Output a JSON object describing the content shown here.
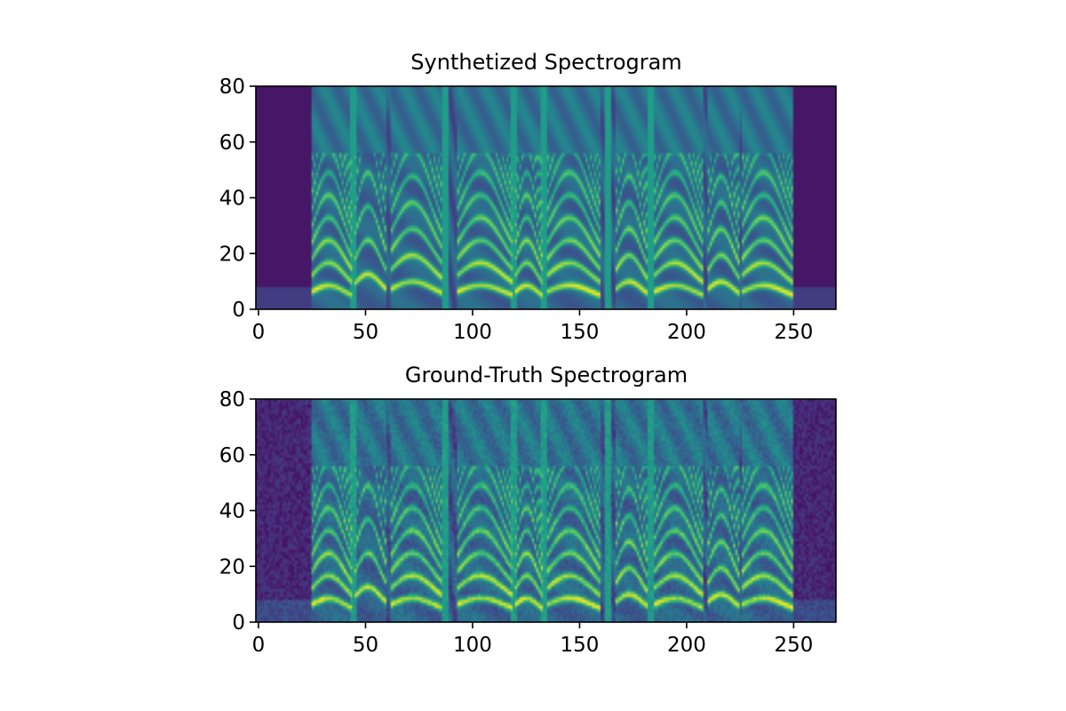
{
  "chart_data": [
    {
      "type": "heatmap",
      "title": "Synthetized Spectrogram",
      "xlim": [
        0,
        271
      ],
      "ylim": [
        0,
        80
      ],
      "xticks": [
        "0",
        "50",
        "100",
        "150",
        "200",
        "250"
      ],
      "yticks": [
        "0",
        "20",
        "40",
        "60",
        "80"
      ],
      "colormap": "viridis",
      "noise": false,
      "silence_ranges": [
        [
          0,
          25
        ],
        [
          250,
          271
        ]
      ],
      "segments": [
        {
          "x": [
            26,
            44
          ],
          "base": 6
        },
        {
          "x": [
            46,
            60
          ],
          "base": 9
        },
        {
          "x": [
            63,
            86
          ],
          "base": 7
        },
        {
          "x": [
            94,
            119
          ],
          "base": 6
        },
        {
          "x": [
            121,
            133
          ],
          "base": 6
        },
        {
          "x": [
            136,
            160
          ],
          "base": 6
        },
        {
          "x": [
            168,
            182
          ],
          "base": 7
        },
        {
          "x": [
            186,
            208
          ],
          "base": 6
        },
        {
          "x": [
            211,
            225
          ],
          "base": 7
        },
        {
          "x": [
            227,
            250
          ],
          "base": 6
        }
      ],
      "dividers": [
        45,
        88,
        120,
        134,
        164,
        184
      ]
    },
    {
      "type": "heatmap",
      "title": "Ground-Truth Spectrogram",
      "xlim": [
        0,
        271
      ],
      "ylim": [
        0,
        80
      ],
      "xticks": [
        "0",
        "50",
        "100",
        "150",
        "200",
        "250"
      ],
      "yticks": [
        "0",
        "20",
        "40",
        "60",
        "80"
      ],
      "colormap": "viridis",
      "noise": true,
      "silence_ranges": [
        [
          0,
          25
        ],
        [
          250,
          271
        ]
      ],
      "segments": [
        {
          "x": [
            26,
            44
          ],
          "base": 6
        },
        {
          "x": [
            46,
            60
          ],
          "base": 9
        },
        {
          "x": [
            63,
            86
          ],
          "base": 6
        },
        {
          "x": [
            94,
            119
          ],
          "base": 6
        },
        {
          "x": [
            121,
            133
          ],
          "base": 6
        },
        {
          "x": [
            136,
            160
          ],
          "base": 6
        },
        {
          "x": [
            168,
            182
          ],
          "base": 7
        },
        {
          "x": [
            186,
            208
          ],
          "base": 6
        },
        {
          "x": [
            211,
            225
          ],
          "base": 7
        },
        {
          "x": [
            227,
            250
          ],
          "base": 6
        }
      ],
      "dividers": [
        45,
        88,
        120,
        134,
        164,
        184
      ]
    }
  ]
}
